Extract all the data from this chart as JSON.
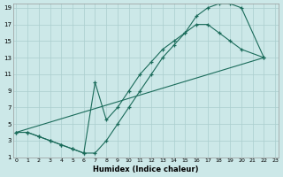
{
  "xlabel": "Humidex (Indice chaleur)",
  "bg_color": "#cce8e8",
  "grid_color": "#aacece",
  "line_color": "#1a6b5a",
  "xlim": [
    -0.3,
    23.3
  ],
  "ylim": [
    1,
    19.5
  ],
  "xticks": [
    0,
    1,
    2,
    3,
    4,
    5,
    6,
    7,
    8,
    9,
    10,
    11,
    12,
    13,
    14,
    15,
    16,
    17,
    18,
    19,
    20,
    21,
    22,
    23
  ],
  "yticks": [
    1,
    3,
    5,
    7,
    9,
    11,
    13,
    15,
    17,
    19
  ],
  "curve1_x": [
    0,
    1,
    2,
    3,
    4,
    5,
    6,
    7,
    8,
    9,
    10,
    11,
    12,
    13,
    14,
    15,
    16,
    17,
    18,
    19,
    20,
    22
  ],
  "curve1_y": [
    4,
    4,
    3.5,
    3,
    2.5,
    2,
    1.5,
    1.5,
    3,
    5,
    7,
    9,
    11,
    13,
    14.5,
    16,
    18,
    19,
    19.5,
    19.5,
    19,
    13
  ],
  "curve2_x": [
    0,
    1,
    2,
    3,
    4,
    5,
    6,
    7,
    8,
    9,
    10,
    11,
    12,
    13,
    14,
    15,
    16,
    17,
    18,
    19,
    20,
    22
  ],
  "curve2_y": [
    4,
    4,
    3.5,
    3,
    2.5,
    2,
    1.5,
    10,
    5.5,
    7,
    9,
    11,
    12.5,
    14,
    15,
    16,
    17,
    17,
    16,
    15,
    14,
    13
  ],
  "curve3_x": [
    0,
    22
  ],
  "curve3_y": [
    4,
    13
  ]
}
